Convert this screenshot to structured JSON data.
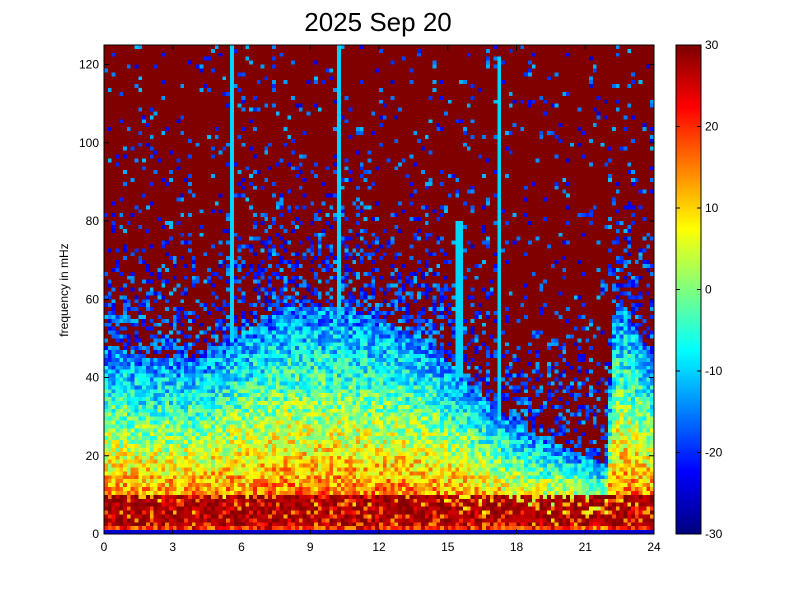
{
  "chart_data": {
    "type": "heatmap",
    "title": "2025 Sep 20",
    "xlabel": "",
    "ylabel": "frequency in mHz",
    "xlim": [
      0,
      24
    ],
    "ylim": [
      0,
      125
    ],
    "xticks": [
      0,
      3,
      6,
      9,
      12,
      15,
      18,
      21,
      24
    ],
    "yticks": [
      0,
      20,
      40,
      60,
      80,
      100,
      120
    ],
    "colorbar": {
      "colormap": "jet",
      "clim": [
        -30,
        30
      ],
      "ticks": [
        -30,
        -20,
        -10,
        0,
        10,
        20,
        30
      ]
    },
    "grid_resolution": {
      "time_bins": 144,
      "freq_bins": 125
    },
    "description_of_values": "spectrogram power levels by time (hours) and frequency (mHz)",
    "noise_floor_mHz_by_hour": [
      {
        "hour": 0,
        "floor": 48
      },
      {
        "hour": 2,
        "floor": 45
      },
      {
        "hour": 4,
        "floor": 45
      },
      {
        "hour": 5.5,
        "floor": 50
      },
      {
        "hour": 8,
        "floor": 58
      },
      {
        "hour": 10,
        "floor": 58
      },
      {
        "hour": 12,
        "floor": 55
      },
      {
        "hour": 14,
        "floor": 50
      },
      {
        "hour": 15.5,
        "floor": 42
      },
      {
        "hour": 17,
        "floor": 32
      },
      {
        "hour": 19,
        "floor": 25
      },
      {
        "hour": 21,
        "floor": 20
      },
      {
        "hour": 21.9,
        "floor": 18
      },
      {
        "hour": 22.3,
        "floor": 60
      },
      {
        "hour": 23,
        "floor": 55
      },
      {
        "hour": 24,
        "floor": 45
      }
    ],
    "vertical_streaks": [
      {
        "hour": 5.6,
        "from_mHz": 50,
        "to_mHz": 125,
        "value": -10
      },
      {
        "hour": 10.2,
        "from_mHz": 55,
        "to_mHz": 125,
        "value": -10
      },
      {
        "hour": 15.5,
        "from_mHz": 40,
        "to_mHz": 80,
        "value": -10
      },
      {
        "hour": 17.3,
        "from_mHz": 30,
        "to_mHz": 122,
        "value": -10
      }
    ],
    "low_frequency_band": {
      "from_mHz": 2,
      "to_mHz": 10,
      "value": 28
    },
    "bottom_row_value": -25
  }
}
